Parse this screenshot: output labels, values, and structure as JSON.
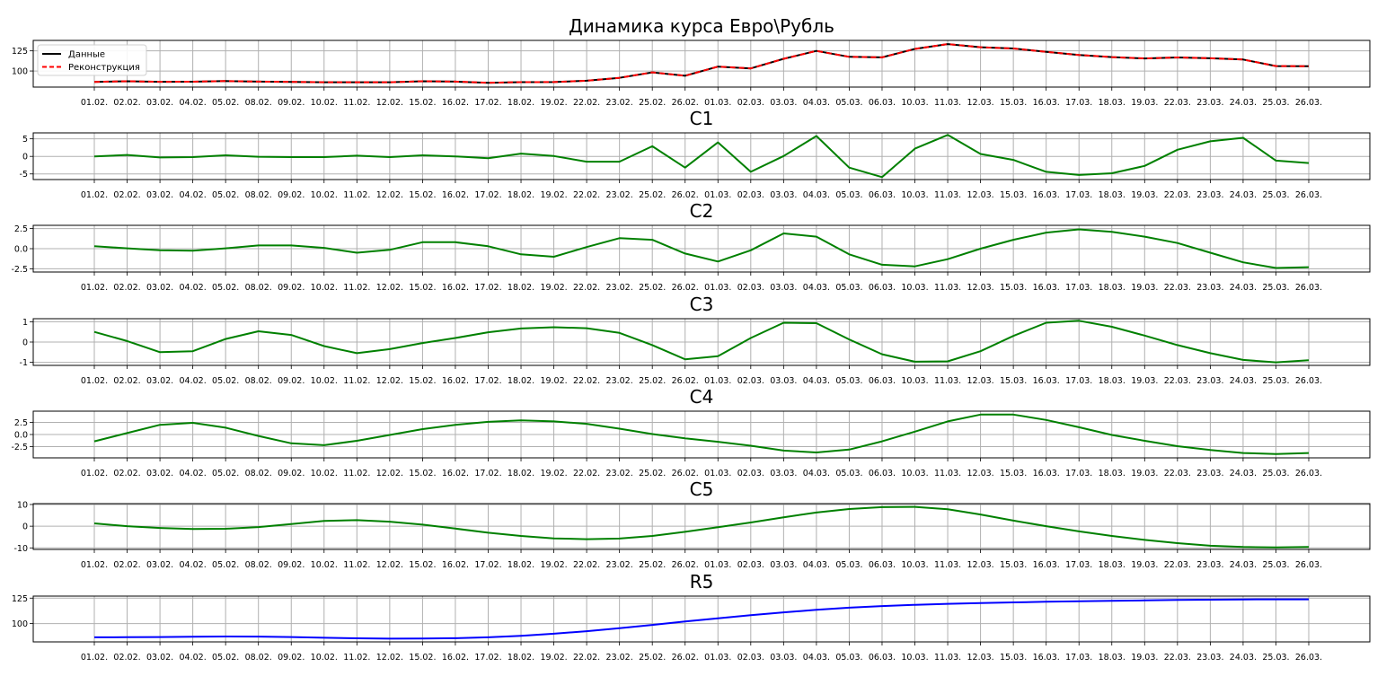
{
  "chart_data": [
    {
      "type": "line",
      "title": "Динамика курса Евро\\Рубль",
      "x": [
        "01.02.",
        "02.02.",
        "03.02.",
        "04.02.",
        "05.02.",
        "08.02.",
        "09.02.",
        "10.02.",
        "11.02.",
        "12.02.",
        "15.02.",
        "16.02.",
        "17.02.",
        "18.02.",
        "19.02.",
        "22.02.",
        "23.02.",
        "25.02.",
        "26.02.",
        "01.03.",
        "02.03.",
        "03.03.",
        "04.03.",
        "05.03.",
        "06.03.",
        "10.03.",
        "11.03.",
        "12.03.",
        "15.03.",
        "16.03.",
        "17.03.",
        "18.03.",
        "19.03.",
        "22.03.",
        "23.03.",
        "24.03.",
        "25.03.",
        "26.03."
      ],
      "yticks": [
        100,
        125
      ],
      "ylim": [
        80,
        138
      ],
      "grid": true,
      "legend": "top-left",
      "series": [
        {
          "name": "Данные",
          "color": "#000000",
          "style": "solid",
          "values": [
            86.5,
            87.2,
            86.6,
            86.7,
            87.5,
            86.8,
            86.5,
            86.0,
            86.0,
            86.0,
            87.3,
            86.8,
            85.3,
            86.1,
            86.3,
            87.9,
            91.5,
            98.3,
            94.0,
            105.4,
            103.2,
            115.1,
            125.0,
            117.6,
            116.9,
            127.4,
            133.4,
            129.5,
            128.0,
            123.8,
            119.9,
            117.2,
            115.6,
            116.8,
            115.8,
            114.2,
            106.1,
            105.9
          ]
        },
        {
          "name": "Реконструкция",
          "color": "#ff0000",
          "style": "dashed",
          "values": [
            86.5,
            87.2,
            86.6,
            86.7,
            87.5,
            86.8,
            86.5,
            86.0,
            86.0,
            86.0,
            87.3,
            86.8,
            85.3,
            86.1,
            86.3,
            87.9,
            91.5,
            98.3,
            94.0,
            105.4,
            103.2,
            115.1,
            125.0,
            117.6,
            116.9,
            127.4,
            133.4,
            129.5,
            128.0,
            123.8,
            119.9,
            117.2,
            115.6,
            116.8,
            115.8,
            114.2,
            106.1,
            105.9
          ]
        }
      ]
    },
    {
      "type": "line",
      "title": "C1",
      "yticks": [
        -5,
        0,
        5
      ],
      "ylim": [
        -6.6,
        6.7
      ],
      "grid": true,
      "series": [
        {
          "color": "#008000",
          "values": [
            0.0,
            0.4,
            -0.3,
            -0.2,
            0.3,
            -0.1,
            -0.2,
            -0.2,
            0.2,
            -0.2,
            0.3,
            0.0,
            -0.5,
            0.8,
            0.1,
            -1.5,
            -1.5,
            2.9,
            -3.2,
            4.0,
            -4.4,
            0.1,
            5.8,
            -3.2,
            -5.9,
            2.2,
            6.1,
            0.7,
            -1.0,
            -4.4,
            -5.3,
            -4.8,
            -2.7,
            1.9,
            4.3,
            5.3,
            -1.2,
            -1.9
          ]
        }
      ]
    },
    {
      "type": "line",
      "title": "C2",
      "yticks": [
        -2.5,
        0.0,
        2.5
      ],
      "ylim": [
        -2.9,
        2.9
      ],
      "grid": true,
      "series": [
        {
          "color": "#008000",
          "values": [
            0.3,
            0.05,
            -0.2,
            -0.25,
            0.05,
            0.4,
            0.4,
            0.1,
            -0.5,
            -0.15,
            0.8,
            0.8,
            0.3,
            -0.7,
            -1.0,
            0.2,
            1.3,
            1.1,
            -0.6,
            -1.6,
            -0.2,
            1.9,
            1.5,
            -0.7,
            -2.0,
            -2.2,
            -1.3,
            0.0,
            1.1,
            2.0,
            2.4,
            2.1,
            1.5,
            0.7,
            -0.5,
            -1.7,
            -2.4,
            -2.3
          ]
        }
      ]
    },
    {
      "type": "line",
      "title": "C3",
      "yticks": [
        -1,
        0,
        1
      ],
      "ylim": [
        -1.15,
        1.15
      ],
      "grid": true,
      "series": [
        {
          "color": "#008000",
          "values": [
            0.5,
            0.05,
            -0.5,
            -0.45,
            0.15,
            0.53,
            0.35,
            -0.2,
            -0.55,
            -0.35,
            -0.05,
            0.2,
            0.48,
            0.67,
            0.73,
            0.68,
            0.45,
            -0.15,
            -0.85,
            -0.7,
            0.2,
            0.95,
            0.93,
            0.13,
            -0.6,
            -0.97,
            -0.95,
            -0.45,
            0.3,
            0.95,
            1.05,
            0.75,
            0.32,
            -0.15,
            -0.55,
            -0.88,
            -1.0,
            -0.9
          ]
        }
      ]
    },
    {
      "type": "line",
      "title": "C4",
      "yticks": [
        -2.5,
        0.0,
        2.5
      ],
      "ylim": [
        -4.8,
        4.8
      ],
      "grid": true,
      "series": [
        {
          "color": "#008000",
          "values": [
            -1.4,
            0.3,
            2.0,
            2.4,
            1.4,
            -0.3,
            -1.8,
            -2.2,
            -1.3,
            -0.1,
            1.1,
            2.0,
            2.6,
            2.9,
            2.7,
            2.2,
            1.2,
            0.1,
            -0.8,
            -1.5,
            -2.3,
            -3.3,
            -3.7,
            -3.1,
            -1.4,
            0.6,
            2.7,
            4.1,
            4.1,
            3.0,
            1.5,
            -0.1,
            -1.3,
            -2.4,
            -3.2,
            -3.8,
            -4.0,
            -3.8
          ]
        }
      ]
    },
    {
      "type": "line",
      "title": "C5",
      "yticks": [
        -10,
        0,
        10
      ],
      "ylim": [
        -10.7,
        10.4
      ],
      "grid": true,
      "series": [
        {
          "color": "#008000",
          "values": [
            1.3,
            0.0,
            -0.8,
            -1.3,
            -1.2,
            -0.4,
            1.0,
            2.4,
            2.8,
            2.1,
            0.7,
            -1.1,
            -3.0,
            -4.5,
            -5.6,
            -6.0,
            -5.7,
            -4.5,
            -2.6,
            -0.5,
            1.7,
            4.1,
            6.3,
            7.9,
            8.8,
            8.9,
            7.8,
            5.4,
            2.6,
            0.0,
            -2.4,
            -4.5,
            -6.3,
            -7.8,
            -9.0,
            -9.6,
            -9.8,
            -9.6
          ]
        }
      ]
    },
    {
      "type": "line",
      "title": "R5",
      "yticks": [
        100,
        125
      ],
      "ylim": [
        82,
        127
      ],
      "grid": true,
      "series": [
        {
          "color": "#0000ff",
          "values": [
            86.5,
            86.6,
            86.8,
            87.1,
            87.3,
            87.2,
            86.8,
            86.1,
            85.5,
            85.2,
            85.3,
            85.6,
            86.5,
            88.0,
            90.0,
            92.5,
            95.5,
            98.7,
            102.0,
            105.2,
            108.3,
            111.0,
            113.5,
            115.6,
            117.2,
            118.4,
            119.4,
            120.2,
            120.8,
            121.4,
            121.9,
            122.4,
            122.8,
            123.2,
            123.5,
            123.7,
            123.8,
            123.8
          ]
        }
      ]
    }
  ]
}
